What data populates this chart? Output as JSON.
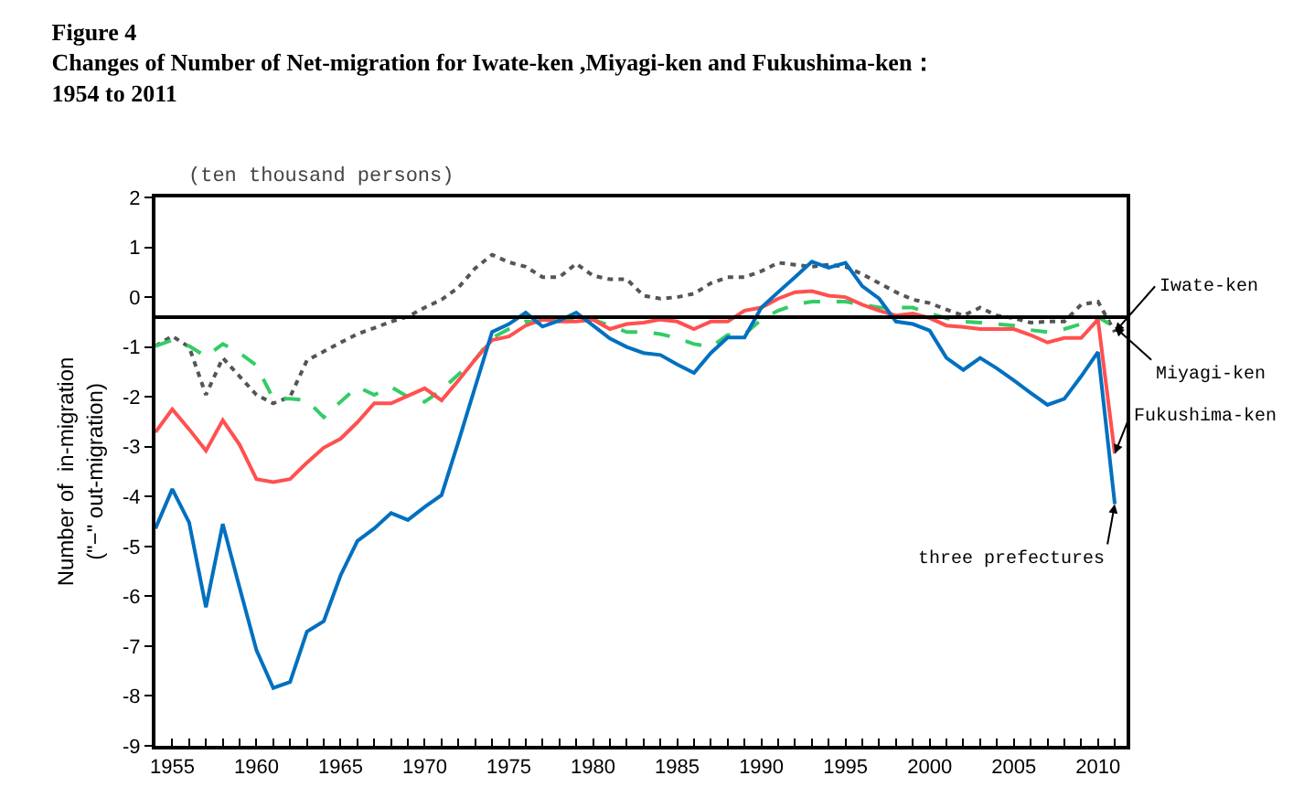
{
  "chart_data": {
    "type": "line",
    "title": "Figure 4\nChanges of Number of Net-migration for Iwate-ken ,Miyagi-ken and Fukushima-ken：\n1954 to 2011",
    "ylabel": "Number of  in-migration\n(\"−\" out-migration)",
    "annotations": [
      "(ten thousand persons)"
    ],
    "x": [
      1954,
      1955,
      1956,
      1957,
      1958,
      1959,
      1960,
      1961,
      1962,
      1963,
      1964,
      1965,
      1966,
      1967,
      1968,
      1969,
      1970,
      1971,
      1972,
      1973,
      1974,
      1975,
      1976,
      1977,
      1978,
      1979,
      1980,
      1981,
      1982,
      1983,
      1984,
      1985,
      1986,
      1987,
      1988,
      1989,
      1990,
      1991,
      1992,
      1993,
      1994,
      1995,
      1996,
      1997,
      1998,
      1999,
      2000,
      2001,
      2002,
      2003,
      2004,
      2005,
      2006,
      2007,
      2008,
      2009,
      2010,
      2011
    ],
    "series": [
      {
        "name": "Iwate-ken",
        "color": "#555555",
        "line_style": "dotted",
        "values": [
          -0.98,
          -0.78,
          -1.0,
          -1.96,
          -1.22,
          -1.59,
          -1.96,
          -2.13,
          -2.0,
          -1.27,
          -1.09,
          -0.91,
          -0.74,
          -0.62,
          -0.49,
          -0.39,
          -0.21,
          -0.05,
          0.19,
          0.58,
          0.85,
          0.7,
          0.61,
          0.4,
          0.4,
          0.67,
          0.43,
          0.36,
          0.36,
          0.03,
          -0.03,
          0.0,
          0.07,
          0.28,
          0.4,
          0.4,
          0.52,
          0.69,
          0.65,
          0.61,
          0.65,
          0.61,
          0.46,
          0.28,
          0.1,
          -0.05,
          -0.12,
          -0.25,
          -0.37,
          -0.21,
          -0.37,
          -0.42,
          -0.51,
          -0.49,
          -0.49,
          -0.15,
          -0.09,
          -0.7
        ]
      },
      {
        "name": "Miyagi-ken",
        "color": "#33cc66",
        "line_style": "dashed",
        "values": [
          -0.98,
          -0.86,
          -0.98,
          -1.19,
          -0.94,
          -1.12,
          -1.37,
          -2.04,
          -2.04,
          -2.07,
          -2.41,
          -2.1,
          -1.8,
          -1.96,
          -1.8,
          -2.0,
          -2.1,
          -1.86,
          -1.55,
          -1.25,
          -0.82,
          -0.64,
          -0.49,
          -0.51,
          -0.45,
          -0.45,
          -0.45,
          -0.57,
          -0.7,
          -0.7,
          -0.74,
          -0.82,
          -0.94,
          -1.0,
          -0.76,
          -0.74,
          -0.45,
          -0.27,
          -0.15,
          -0.09,
          -0.09,
          -0.09,
          -0.15,
          -0.21,
          -0.21,
          -0.21,
          -0.33,
          -0.42,
          -0.49,
          -0.51,
          -0.54,
          -0.57,
          -0.66,
          -0.7,
          -0.64,
          -0.54,
          -0.4,
          -0.6
        ]
      },
      {
        "name": "Fukushima-ken",
        "color": "#ff5050",
        "line_style": "solid",
        "values": [
          -2.71,
          -2.25,
          -2.65,
          -3.08,
          -2.47,
          -2.96,
          -3.65,
          -3.71,
          -3.65,
          -3.32,
          -3.02,
          -2.84,
          -2.51,
          -2.13,
          -2.13,
          -1.98,
          -1.83,
          -2.07,
          -1.67,
          -1.25,
          -0.86,
          -0.79,
          -0.57,
          -0.45,
          -0.49,
          -0.49,
          -0.45,
          -0.64,
          -0.54,
          -0.51,
          -0.45,
          -0.49,
          -0.64,
          -0.49,
          -0.49,
          -0.27,
          -0.21,
          -0.03,
          0.1,
          0.12,
          0.03,
          0.0,
          -0.15,
          -0.27,
          -0.37,
          -0.33,
          -0.42,
          -0.57,
          -0.6,
          -0.64,
          -0.64,
          -0.64,
          -0.76,
          -0.91,
          -0.82,
          -0.82,
          -0.45,
          -3.14
        ]
      },
      {
        "name": "three prefectures",
        "color": "#0070c0",
        "line_style": "solid",
        "values": [
          -4.64,
          -3.85,
          -4.52,
          -6.22,
          -4.55,
          -5.83,
          -7.08,
          -7.84,
          -7.72,
          -6.71,
          -6.5,
          -5.58,
          -4.89,
          -4.64,
          -4.33,
          -4.47,
          -4.21,
          -3.97,
          -2.9,
          -1.8,
          -0.7,
          -0.54,
          -0.31,
          -0.59,
          -0.47,
          -0.31,
          -0.57,
          -0.83,
          -1.0,
          -1.12,
          -1.16,
          -1.35,
          -1.52,
          -1.12,
          -0.81,
          -0.81,
          -0.21,
          0.1,
          0.4,
          0.71,
          0.59,
          0.69,
          0.22,
          -0.03,
          -0.49,
          -0.54,
          -0.67,
          -1.22,
          -1.46,
          -1.22,
          -1.43,
          -1.67,
          -1.92,
          -2.16,
          -2.04,
          -1.59,
          -1.1,
          -4.15
        ]
      }
    ],
    "xlim": [
      1954,
      2011.7
    ],
    "xticks": [
      {
        "value": 1954,
        "label": null
      },
      1955,
      {
        "value": 1956,
        "label": null
      },
      {
        "value": 1957,
        "label": null
      },
      {
        "value": 1958,
        "label": null
      },
      {
        "value": 1959,
        "label": null
      },
      1960,
      {
        "value": 1961,
        "label": null
      },
      {
        "value": 1962,
        "label": null
      },
      {
        "value": 1963,
        "label": null
      },
      {
        "value": 1964,
        "label": null
      },
      1965,
      {
        "value": 1966,
        "label": null
      },
      {
        "value": 1967,
        "label": null
      },
      {
        "value": 1968,
        "label": null
      },
      {
        "value": 1969,
        "label": null
      },
      1970,
      {
        "value": 1971,
        "label": null
      },
      {
        "value": 1972,
        "label": null
      },
      {
        "value": 1973,
        "label": null
      },
      {
        "value": 1974,
        "label": null
      },
      1975,
      {
        "value": 1976,
        "label": null
      },
      {
        "value": 1977,
        "label": null
      },
      {
        "value": 1978,
        "label": null
      },
      {
        "value": 1979,
        "label": null
      },
      1980,
      {
        "value": 1981,
        "label": null
      },
      {
        "value": 1982,
        "label": null
      },
      {
        "value": 1983,
        "label": null
      },
      {
        "value": 1984,
        "label": null
      },
      1985,
      {
        "value": 1986,
        "label": null
      },
      {
        "value": 1987,
        "label": null
      },
      {
        "value": 1988,
        "label": null
      },
      {
        "value": 1989,
        "label": null
      },
      1990,
      {
        "value": 1991,
        "label": null
      },
      {
        "value": 1992,
        "label": null
      },
      {
        "value": 1993,
        "label": null
      },
      {
        "value": 1994,
        "label": null
      },
      1995,
      {
        "value": 1996,
        "label": null
      },
      {
        "value": 1997,
        "label": null
      },
      {
        "value": 1998,
        "label": null
      },
      {
        "value": 1999,
        "label": null
      },
      2000,
      {
        "value": 2001,
        "label": null
      },
      {
        "value": 2002,
        "label": null
      },
      {
        "value": 2003,
        "label": null
      },
      {
        "value": 2004,
        "label": null
      },
      2005,
      {
        "value": 2006,
        "label": null
      },
      {
        "value": 2007,
        "label": null
      },
      {
        "value": 2008,
        "label": null
      },
      {
        "value": 2009,
        "label": null
      },
      2010,
      {
        "value": 2011,
        "label": null
      }
    ],
    "ylim": [
      -9,
      2
    ],
    "yticks": [
      -9,
      -8,
      -7,
      -6,
      -5,
      -4,
      -3,
      -2,
      -1,
      0,
      1,
      2
    ],
    "ref_lines": [
      {
        "axis": "y",
        "value": -0.4,
        "label": null,
        "color": "#000000",
        "line_style": "solid"
      }
    ],
    "grid": false,
    "legend": false,
    "marker": "none"
  }
}
